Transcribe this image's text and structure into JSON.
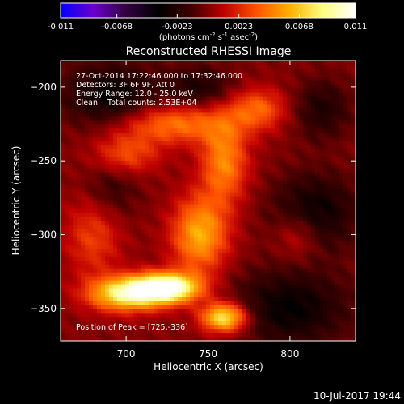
{
  "chart_data": {
    "type": "heatmap",
    "title": "Reconstructed RHESSI Image",
    "xlabel": "Heliocentric X (arcsec)",
    "ylabel": "Heliocentric Y (arcsec)",
    "xlim": [
      660,
      840
    ],
    "ylim": [
      -372,
      -182
    ],
    "x_ticks": [
      700,
      750,
      800
    ],
    "y_ticks": [
      -200,
      -250,
      -300,
      -350
    ],
    "colorbar": {
      "range": [
        -0.011,
        0.011
      ],
      "tick_values": [
        -0.011,
        -0.0068,
        -0.0023,
        0.0023,
        0.0068,
        0.011
      ],
      "tick_labels": [
        "-0.011",
        "-0.0068",
        "-0.0023",
        "0.0023",
        "0.0068",
        "0.011"
      ],
      "unit_label": "(photons cm-2 s-1 asec-2)",
      "colormap": [
        "#0000ff",
        "#6a00cf",
        "#330040",
        "#000000",
        "#400000",
        "#c00000",
        "#ff5500",
        "#ffb000",
        "#ffff80",
        "#ffffff"
      ]
    },
    "annotations": [
      "27-Oct-2014 17:22:46.000 to 17:32:46.000",
      "Detectors: 3F 6F 9F, Att 0",
      "Energy Range: 12.0 - 25.0 keV",
      "Clean    Total counts: 2.53E+04"
    ],
    "peak_label": "Position of Peak = [725,-336]",
    "peak": {
      "x": 725,
      "y": -336
    },
    "sources": [
      {
        "x": 725,
        "y": -336,
        "sx": 14,
        "sy": 7,
        "amp": 0.011
      },
      {
        "x": 700,
        "y": -340,
        "sx": 16,
        "sy": 8,
        "amp": 0.0085
      },
      {
        "x": 760,
        "y": -356,
        "sx": 10,
        "sy": 7,
        "amp": 0.0085
      },
      {
        "x": 745,
        "y": -300,
        "sx": 12,
        "sy": 18,
        "amp": 0.006
      },
      {
        "x": 760,
        "y": -250,
        "sx": 10,
        "sy": 20,
        "amp": 0.005
      },
      {
        "x": 730,
        "y": -225,
        "sx": 22,
        "sy": 9,
        "amp": 0.0045
      },
      {
        "x": 780,
        "y": -215,
        "sx": 12,
        "sy": 10,
        "amp": 0.004
      },
      {
        "x": 700,
        "y": -245,
        "sx": 14,
        "sy": 10,
        "amp": 0.0035
      },
      {
        "x": 680,
        "y": -300,
        "sx": 12,
        "sy": 20,
        "amp": 0.003
      },
      {
        "x": 805,
        "y": -300,
        "sx": 10,
        "sy": 12,
        "amp": 0.0025
      }
    ],
    "negatives": [
      {
        "x": 690,
        "y": -205,
        "sx": 20,
        "sy": 15,
        "amp": 0.0035
      },
      {
        "x": 745,
        "y": -200,
        "sx": 15,
        "sy": 10,
        "amp": 0.0025
      },
      {
        "x": 820,
        "y": -215,
        "sx": 12,
        "sy": 14,
        "amp": 0.0025
      },
      {
        "x": 815,
        "y": -285,
        "sx": 18,
        "sy": 18,
        "amp": 0.0035
      },
      {
        "x": 800,
        "y": -350,
        "sx": 25,
        "sy": 18,
        "amp": 0.0035
      },
      {
        "x": 690,
        "y": -270,
        "sx": 12,
        "sy": 15,
        "amp": 0.002
      }
    ]
  },
  "footer_date": "10-Jul-2017 19:44"
}
